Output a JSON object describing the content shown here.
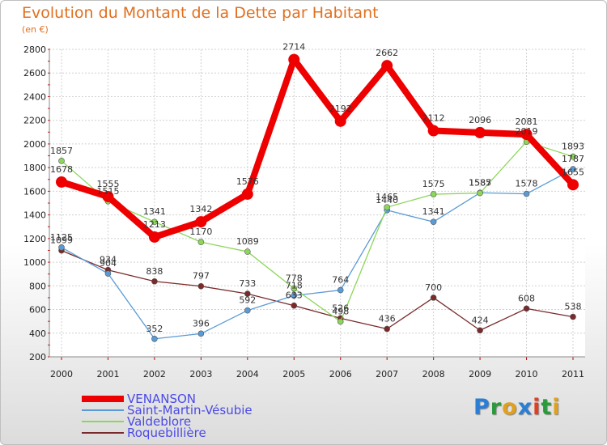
{
  "title": "Evolution du Montant de la Dette par Habitant",
  "subtitle": "(en €)",
  "logo_letters": [
    {
      "ch": "P",
      "color": "#2a7fd4"
    },
    {
      "ch": "r",
      "color": "#2a9a3a"
    },
    {
      "ch": "o",
      "color": "#e0a020"
    },
    {
      "ch": "x",
      "color": "#2a7fd4"
    },
    {
      "ch": "i",
      "color": "#e04020"
    },
    {
      "ch": "t",
      "color": "#2a9a3a"
    },
    {
      "ch": "i",
      "color": "#e0a020"
    }
  ],
  "chart_data": {
    "type": "line",
    "x": [
      "2000",
      "2001",
      "2002",
      "2003",
      "2004",
      "2005",
      "2006",
      "2007",
      "2008",
      "2009",
      "2010",
      "2011"
    ],
    "ylim": [
      200,
      2800
    ],
    "yticks": [
      200,
      400,
      600,
      800,
      1000,
      1200,
      1400,
      1600,
      1800,
      2000,
      2200,
      2400,
      2600,
      2800
    ],
    "grid": true,
    "legend": "bottom-left",
    "series": [
      {
        "name": "VENANSON",
        "color": "#ee0000",
        "values": [
          1678,
          1555,
          1213,
          1342,
          1576,
          2714,
          2192,
          2662,
          2112,
          2096,
          2081,
          1655
        ]
      },
      {
        "name": "Saint-Martin-Vésubie",
        "color": "#5a9bd5",
        "values": [
          1125,
          904,
          352,
          396,
          592,
          718,
          764,
          1440,
          1341,
          1587,
          1578,
          1787
        ]
      },
      {
        "name": "Valdeblore",
        "color": "#8ed65a",
        "values": [
          1857,
          1515,
          1341,
          1170,
          1089,
          778,
          498,
          1465,
          1575,
          1585,
          2019,
          1893
        ]
      },
      {
        "name": "Roquebillière",
        "color": "#7a2a2a",
        "values": [
          1099,
          934,
          838,
          797,
          733,
          633,
          526,
          436,
          700,
          424,
          608,
          538
        ]
      }
    ]
  }
}
